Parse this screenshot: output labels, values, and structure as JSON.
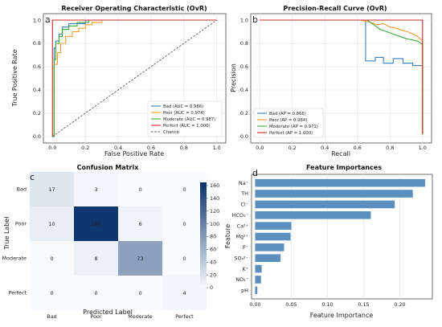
{
  "panels": {
    "a": "a",
    "b": "b",
    "c": "c",
    "d": "d"
  },
  "colors": {
    "bad": "#3b7fbf",
    "poor": "#f59a2e",
    "moderate": "#3aa83a",
    "perfect": "#d62728",
    "bar": "#5b8fc0",
    "chance": "#444444"
  },
  "chart_data": [
    {
      "id": "roc",
      "type": "line",
      "title": "Receiver Operating Characteristic (OvR)",
      "xlabel": "False Positive Rate",
      "ylabel": "True Positive Rate",
      "xlim": [
        0,
        1
      ],
      "ylim": [
        0,
        1
      ],
      "xticks": [
        "0.0",
        "0.2",
        "0.4",
        "0.6",
        "0.8",
        "1.0"
      ],
      "yticks": [
        "0.0",
        "0.2",
        "0.4",
        "0.6",
        "0.8",
        "1.0"
      ],
      "grid": true,
      "legend_position": "bottom-right",
      "series": [
        {
          "name": "Bad (AUC = 0.986)",
          "color_key": "bad",
          "x": [
            0,
            0.01,
            0.01,
            0.02,
            0.02,
            0.04,
            0.04,
            0.06,
            0.06,
            0.08,
            0.1,
            0.1,
            0.14,
            0.2,
            0.2,
            0.26,
            1.0
          ],
          "y": [
            0,
            0,
            0.76,
            0.76,
            0.82,
            0.82,
            0.88,
            0.88,
            0.94,
            0.94,
            0.94,
            0.97,
            0.97,
            0.97,
            1.0,
            1.0,
            1.0
          ]
        },
        {
          "name": "Poor (AUC = 0.974)",
          "color_key": "poor",
          "x": [
            0,
            0.01,
            0.01,
            0.03,
            0.03,
            0.05,
            0.05,
            0.08,
            0.08,
            0.12,
            0.12,
            0.16,
            0.16,
            0.2,
            0.2,
            0.24,
            0.24,
            0.3,
            0.3,
            1.0
          ],
          "y": [
            0,
            0,
            0.62,
            0.62,
            0.72,
            0.72,
            0.8,
            0.8,
            0.86,
            0.86,
            0.9,
            0.9,
            0.93,
            0.93,
            0.96,
            0.96,
            0.98,
            0.98,
            1.0,
            1.0
          ]
        },
        {
          "name": "Moderate (AUC = 0.987)",
          "color_key": "moderate",
          "x": [
            0,
            0.01,
            0.01,
            0.02,
            0.02,
            0.04,
            0.04,
            0.06,
            0.06,
            0.1,
            0.1,
            0.15,
            0.15,
            0.22,
            0.22,
            1.0
          ],
          "y": [
            0,
            0,
            0.66,
            0.66,
            0.8,
            0.8,
            0.86,
            0.86,
            0.92,
            0.92,
            0.95,
            0.95,
            0.98,
            0.98,
            1.0,
            1.0
          ]
        },
        {
          "name": "Perfect (AUC = 1.000)",
          "color_key": "perfect",
          "x": [
            0,
            0,
            1
          ],
          "y": [
            0,
            1,
            1
          ]
        },
        {
          "name": "Chance",
          "color_key": "chance",
          "dashed": true,
          "x": [
            0,
            1
          ],
          "y": [
            0,
            1
          ]
        }
      ]
    },
    {
      "id": "pr",
      "type": "line",
      "title": "Precision-Recall Curve (OvR)",
      "xlabel": "Recall",
      "ylabel": "Precision",
      "xlim": [
        0,
        1
      ],
      "ylim": [
        0,
        1
      ],
      "xticks": [
        "0.0",
        "0.2",
        "0.4",
        "0.6",
        "0.8",
        "1.0"
      ],
      "yticks": [
        "0.0",
        "0.2",
        "0.4",
        "0.6",
        "0.8",
        "1.0"
      ],
      "grid": true,
      "legend_position": "bottom-left",
      "series": [
        {
          "name": "Bad (AP = 0.866)",
          "color_key": "bad",
          "x": [
            0,
            0.65,
            0.65,
            0.71,
            0.71,
            0.76,
            0.76,
            0.82,
            0.82,
            0.88,
            0.88,
            0.94,
            0.94,
            1.0,
            1.0
          ],
          "y": [
            1.0,
            1.0,
            0.65,
            0.65,
            0.68,
            0.68,
            0.63,
            0.63,
            0.67,
            0.67,
            0.63,
            0.63,
            0.61,
            0.61,
            0.02
          ]
        },
        {
          "name": "Poor (AP = 0.984)",
          "color_key": "poor",
          "x": [
            0,
            0.62,
            0.68,
            0.72,
            0.76,
            0.8,
            0.84,
            0.88,
            0.91,
            0.94,
            0.97,
            1.0,
            1.0
          ],
          "y": [
            1.0,
            1.0,
            0.98,
            0.96,
            0.97,
            0.94,
            0.93,
            0.91,
            0.9,
            0.88,
            0.86,
            0.82,
            0.02
          ]
        },
        {
          "name": "Moderate (AP = 0.971)",
          "color_key": "moderate",
          "x": [
            0,
            0.66,
            0.7,
            0.74,
            0.78,
            0.82,
            0.86,
            0.9,
            0.94,
            0.97,
            1.0,
            1.0
          ],
          "y": [
            1.0,
            1.0,
            0.96,
            0.92,
            0.9,
            0.88,
            0.86,
            0.84,
            0.83,
            0.82,
            0.79,
            0.02
          ]
        },
        {
          "name": "Perfect (AP = 1.000)",
          "color_key": "perfect",
          "x": [
            0,
            1.0,
            1.0
          ],
          "y": [
            1.0,
            1.0,
            0.02
          ]
        }
      ]
    },
    {
      "id": "cm",
      "type": "heatmap",
      "title": "Confusion Matrix",
      "xlabel": "Predicted Label",
      "ylabel": "True Label",
      "labels": [
        "Bad",
        "Poor",
        "Moderate",
        "Perfect"
      ],
      "matrix": [
        [
          17,
          3,
          0,
          0
        ],
        [
          10,
          160,
          6,
          0
        ],
        [
          0,
          8,
          73,
          0
        ],
        [
          0,
          0,
          0,
          4
        ]
      ],
      "colorbar_ticks": [
        "0",
        "20",
        "40",
        "60",
        "80",
        "100",
        "120",
        "140",
        "160"
      ],
      "vmax": 165
    },
    {
      "id": "fi",
      "type": "bar",
      "orientation": "horizontal",
      "title": "Feature Importances",
      "xlabel": "Feature Importance",
      "ylabel": "Feature",
      "xlim": [
        0,
        0.24
      ],
      "xticks": [
        "0.00",
        "0.05",
        "0.10",
        "0.15",
        "0.20"
      ],
      "categories": [
        "Na⁺",
        "TH",
        "Cl⁻",
        "HCO₃⁻",
        "Ca²⁺",
        "Mg²⁺",
        "F⁻",
        "SO₄²⁻",
        "K⁺",
        "NO₃⁻",
        "pH"
      ],
      "values": [
        0.235,
        0.218,
        0.193,
        0.16,
        0.05,
        0.049,
        0.04,
        0.035,
        0.009,
        0.008,
        0.003
      ]
    }
  ]
}
